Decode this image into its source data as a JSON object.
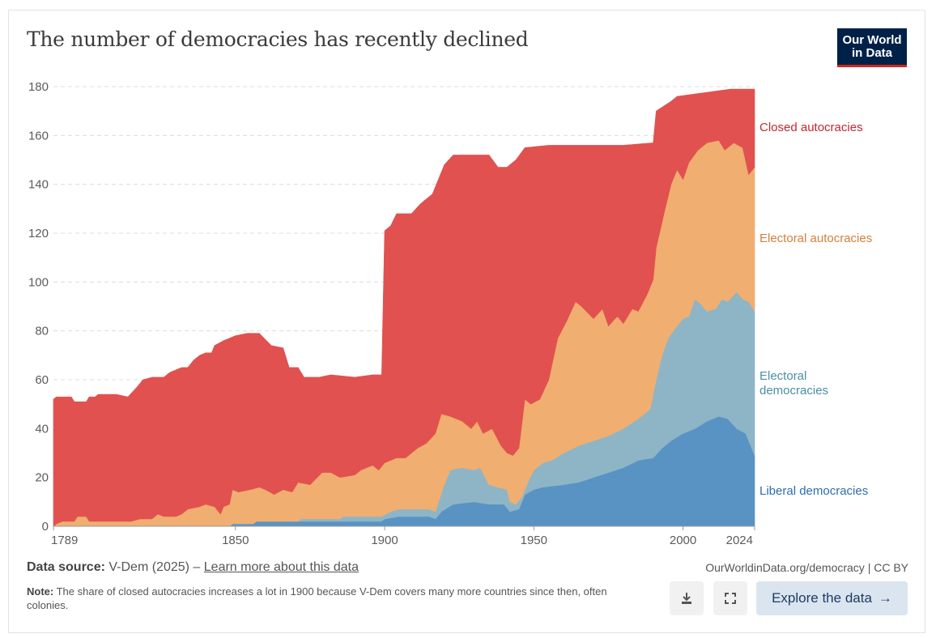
{
  "header": {
    "title": "The number of democracies has recently declined",
    "logo_text": "Our World in Data",
    "logo_line1": "Our World",
    "logo_line2": "in Data"
  },
  "chart_data": {
    "type": "area",
    "stacked": true,
    "note": "Each series is given as the cumulative top boundary of its stacked band ([year, cumulative count]); band value = top minus top of band below.",
    "title": "The number of democracies has recently declined",
    "xlim": [
      1789,
      2024
    ],
    "ylim": [
      0,
      180
    ],
    "y_ticks": [
      0,
      20,
      40,
      60,
      80,
      100,
      120,
      140,
      160,
      180
    ],
    "x_ticks": [
      1789,
      1850,
      1900,
      1950,
      2000,
      2024
    ],
    "grid": "horizontal dashed",
    "legend": "right, inline labels",
    "series": [
      {
        "name": "Liberal democracies",
        "color": "#5893c4",
        "label_color": "#2e6db0",
        "stack_top": [
          [
            1789,
            0
          ],
          [
            1848,
            0
          ],
          [
            1849,
            1
          ],
          [
            1856,
            1
          ],
          [
            1857,
            2
          ],
          [
            1899,
            2
          ],
          [
            1900,
            3
          ],
          [
            1905,
            4
          ],
          [
            1915,
            4
          ],
          [
            1917,
            3
          ],
          [
            1919,
            6
          ],
          [
            1923,
            9
          ],
          [
            1930,
            10
          ],
          [
            1935,
            9
          ],
          [
            1940,
            9
          ],
          [
            1942,
            6
          ],
          [
            1945,
            7
          ],
          [
            1947,
            13
          ],
          [
            1950,
            15
          ],
          [
            1953,
            16
          ],
          [
            1960,
            17
          ],
          [
            1965,
            18
          ],
          [
            1970,
            20
          ],
          [
            1975,
            22
          ],
          [
            1980,
            24
          ],
          [
            1985,
            27
          ],
          [
            1990,
            28
          ],
          [
            1993,
            32
          ],
          [
            1996,
            35
          ],
          [
            2000,
            38
          ],
          [
            2004,
            40
          ],
          [
            2008,
            43
          ],
          [
            2012,
            45
          ],
          [
            2015,
            44
          ],
          [
            2018,
            40
          ],
          [
            2021,
            38
          ],
          [
            2024,
            29
          ]
        ]
      },
      {
        "name": "Electoral democracies",
        "color": "#8db5c6",
        "label_color": "#4a8fa6",
        "stack_top": [
          [
            1789,
            0
          ],
          [
            1848,
            0
          ],
          [
            1849,
            1
          ],
          [
            1856,
            1
          ],
          [
            1857,
            2
          ],
          [
            1871,
            2
          ],
          [
            1872,
            3
          ],
          [
            1885,
            3
          ],
          [
            1886,
            4
          ],
          [
            1899,
            4
          ],
          [
            1902,
            6
          ],
          [
            1905,
            7
          ],
          [
            1915,
            7
          ],
          [
            1917,
            6
          ],
          [
            1920,
            17
          ],
          [
            1922,
            23
          ],
          [
            1926,
            24
          ],
          [
            1930,
            23
          ],
          [
            1932,
            24
          ],
          [
            1935,
            17
          ],
          [
            1938,
            16
          ],
          [
            1941,
            15
          ],
          [
            1942,
            10
          ],
          [
            1944,
            9
          ],
          [
            1946,
            12
          ],
          [
            1948,
            18
          ],
          [
            1950,
            23
          ],
          [
            1953,
            26
          ],
          [
            1956,
            27
          ],
          [
            1960,
            30
          ],
          [
            1965,
            33
          ],
          [
            1970,
            35
          ],
          [
            1975,
            37
          ],
          [
            1980,
            40
          ],
          [
            1985,
            44
          ],
          [
            1989,
            48
          ],
          [
            1990,
            54
          ],
          [
            1991,
            60
          ],
          [
            1993,
            70
          ],
          [
            1995,
            77
          ],
          [
            1998,
            82
          ],
          [
            2000,
            85
          ],
          [
            2002,
            86
          ],
          [
            2004,
            93
          ],
          [
            2006,
            91
          ],
          [
            2008,
            88
          ],
          [
            2011,
            89
          ],
          [
            2013,
            93
          ],
          [
            2015,
            92
          ],
          [
            2018,
            96
          ],
          [
            2020,
            93
          ],
          [
            2022,
            92
          ],
          [
            2024,
            88
          ]
        ]
      },
      {
        "name": "Electoral autocracies",
        "color": "#f0ae71",
        "label_color": "#d4803b",
        "stack_top": [
          [
            1789,
            0
          ],
          [
            1790,
            1
          ],
          [
            1792,
            2
          ],
          [
            1796,
            2
          ],
          [
            1797,
            4
          ],
          [
            1800,
            4
          ],
          [
            1801,
            2
          ],
          [
            1815,
            2
          ],
          [
            1818,
            3
          ],
          [
            1822,
            3
          ],
          [
            1824,
            5
          ],
          [
            1826,
            4
          ],
          [
            1830,
            4
          ],
          [
            1832,
            5
          ],
          [
            1834,
            7
          ],
          [
            1838,
            8
          ],
          [
            1840,
            9
          ],
          [
            1843,
            8
          ],
          [
            1845,
            5
          ],
          [
            1846,
            8
          ],
          [
            1848,
            9
          ],
          [
            1849,
            15
          ],
          [
            1851,
            14
          ],
          [
            1855,
            15
          ],
          [
            1858,
            16
          ],
          [
            1860,
            15
          ],
          [
            1863,
            13
          ],
          [
            1866,
            15
          ],
          [
            1869,
            14
          ],
          [
            1871,
            18
          ],
          [
            1875,
            17
          ],
          [
            1879,
            22
          ],
          [
            1882,
            22
          ],
          [
            1885,
            20
          ],
          [
            1890,
            21
          ],
          [
            1892,
            23
          ],
          [
            1896,
            25
          ],
          [
            1898,
            23
          ],
          [
            1900,
            26
          ],
          [
            1904,
            28
          ],
          [
            1907,
            28
          ],
          [
            1911,
            32
          ],
          [
            1914,
            34
          ],
          [
            1917,
            38
          ],
          [
            1919,
            46
          ],
          [
            1922,
            45
          ],
          [
            1926,
            43
          ],
          [
            1929,
            40
          ],
          [
            1931,
            43
          ],
          [
            1933,
            38
          ],
          [
            1936,
            40
          ],
          [
            1939,
            33
          ],
          [
            1941,
            30
          ],
          [
            1943,
            29
          ],
          [
            1945,
            32
          ],
          [
            1947,
            52
          ],
          [
            1949,
            50
          ],
          [
            1952,
            52
          ],
          [
            1955,
            60
          ],
          [
            1958,
            77
          ],
          [
            1961,
            84
          ],
          [
            1964,
            92
          ],
          [
            1966,
            90
          ],
          [
            1970,
            85
          ],
          [
            1973,
            89
          ],
          [
            1975,
            82
          ],
          [
            1978,
            86
          ],
          [
            1980,
            83
          ],
          [
            1983,
            89
          ],
          [
            1985,
            88
          ],
          [
            1988,
            95
          ],
          [
            1990,
            101
          ],
          [
            1991,
            114
          ],
          [
            1994,
            130
          ],
          [
            1996,
            140
          ],
          [
            1998,
            146
          ],
          [
            2000,
            142
          ],
          [
            2002,
            149
          ],
          [
            2005,
            154
          ],
          [
            2008,
            157
          ],
          [
            2012,
            158
          ],
          [
            2014,
            154
          ],
          [
            2017,
            157
          ],
          [
            2020,
            155
          ],
          [
            2022,
            144
          ],
          [
            2024,
            147
          ]
        ]
      },
      {
        "name": "Closed autocracies",
        "color": "#e1514f",
        "label_color": "#c8262c",
        "stack_top": [
          [
            1789,
            52
          ],
          [
            1790,
            53
          ],
          [
            1795,
            53
          ],
          [
            1796,
            51
          ],
          [
            1800,
            51
          ],
          [
            1801,
            53
          ],
          [
            1803,
            53
          ],
          [
            1804,
            54
          ],
          [
            1810,
            54
          ],
          [
            1814,
            53
          ],
          [
            1817,
            57
          ],
          [
            1819,
            60
          ],
          [
            1822,
            61
          ],
          [
            1826,
            61
          ],
          [
            1828,
            63
          ],
          [
            1832,
            65
          ],
          [
            1834,
            65
          ],
          [
            1836,
            68
          ],
          [
            1838,
            70
          ],
          [
            1840,
            71
          ],
          [
            1842,
            71
          ],
          [
            1843,
            74
          ],
          [
            1846,
            76
          ],
          [
            1848,
            77
          ],
          [
            1850,
            78
          ],
          [
            1854,
            79
          ],
          [
            1858,
            79
          ],
          [
            1862,
            74
          ],
          [
            1866,
            73
          ],
          [
            1868,
            65
          ],
          [
            1871,
            65
          ],
          [
            1873,
            61
          ],
          [
            1878,
            61
          ],
          [
            1882,
            62
          ],
          [
            1890,
            61
          ],
          [
            1896,
            62
          ],
          [
            1899,
            62
          ],
          [
            1900,
            121
          ],
          [
            1902,
            123
          ],
          [
            1904,
            128
          ],
          [
            1909,
            128
          ],
          [
            1912,
            132
          ],
          [
            1916,
            136
          ],
          [
            1918,
            142
          ],
          [
            1920,
            148
          ],
          [
            1923,
            152
          ],
          [
            1930,
            152
          ],
          [
            1935,
            152
          ],
          [
            1938,
            147
          ],
          [
            1941,
            147
          ],
          [
            1944,
            150
          ],
          [
            1947,
            155
          ],
          [
            1955,
            156
          ],
          [
            1970,
            156
          ],
          [
            1980,
            156
          ],
          [
            1990,
            157
          ],
          [
            1991,
            170
          ],
          [
            1996,
            174
          ],
          [
            1998,
            176
          ],
          [
            2004,
            177
          ],
          [
            2010,
            178
          ],
          [
            2016,
            179
          ],
          [
            2024,
            179
          ]
        ]
      }
    ]
  },
  "footer": {
    "source_label": "Data source:",
    "source_value": "V-Dem (2025) – ",
    "source_link": "Learn more about this data",
    "note_label": "Note:",
    "note_text": "The share of closed autocracies increases a lot in 1900 because V-Dem covers many more countries since then, often colonies.",
    "url": "OurWorldinData.org/democracy | CC BY",
    "explore_label": "Explore the data",
    "explore_icon": "→",
    "download_icon": "download-icon",
    "fullscreen_icon": "fullscreen-icon"
  }
}
